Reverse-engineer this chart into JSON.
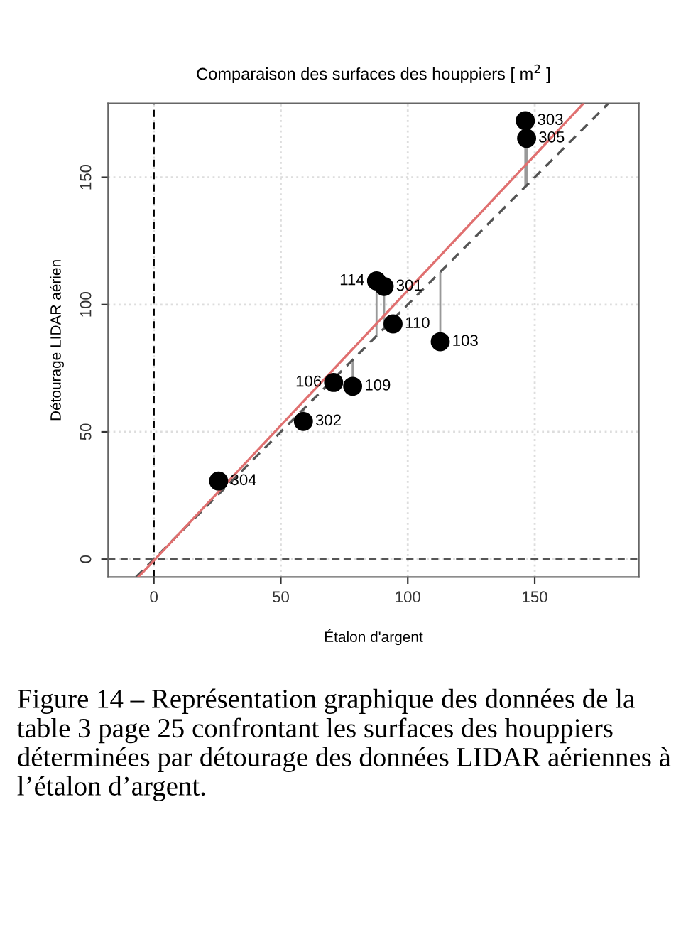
{
  "chart_data": {
    "type": "scatter",
    "title": "Comparaison des surfaces des houppiers [ m$^{2}$ ]",
    "xlabel": "Étalon d'argent",
    "ylabel": "Détourage LIDAR aérien",
    "xlim": [
      -18,
      191
    ],
    "ylim": [
      -7,
      179
    ],
    "xticks": [
      0,
      50,
      100,
      150
    ],
    "yticks": [
      0,
      50,
      100,
      150
    ],
    "grid": true,
    "legend": false,
    "series": [
      {
        "color": "#000000",
        "marker": "circle",
        "x": [
          146.3,
          146.8,
          87.7,
          90.7,
          94.2,
          112.8,
          70.8,
          78.3,
          58.9,
          25.5
        ],
        "values": [
          172.2,
          165.3,
          109.3,
          107.1,
          92.4,
          85.4,
          69.4,
          67.9,
          54.1,
          30.7
        ],
        "errors": [
          [
            146.3,
            172.2
          ],
          [
            146.8,
            165.3
          ],
          [
            87.7,
            109.3
          ],
          [
            90.7,
            107.1
          ],
          null,
          [
            85.4,
            112.8
          ],
          null,
          [
            67.9,
            78.3
          ],
          [
            54.1,
            58.9
          ],
          [
            25.5,
            30.7
          ]
        ]
      },
      {
        "type": "line",
        "color": "#555555",
        "line_style": "dashed",
        "x": [
          -7,
          179
        ],
        "values": [
          -7,
          179
        ]
      },
      {
        "type": "line",
        "color": "#e07070",
        "line_style": "solid",
        "x": [
          -6.1,
          169.1
        ],
        "values": [
          -7,
          178.9
        ]
      }
    ],
    "ref_lines": [
      {
        "axis": "x",
        "value": 0,
        "color": "#000000",
        "line_style": "dashed"
      },
      {
        "axis": "y",
        "value": 0,
        "color": "#555555",
        "line_style": "dashed"
      }
    ],
    "annotations": [
      {
        "text": "303",
        "x": 146.3,
        "y": 172.2
      },
      {
        "text": "305",
        "x": 146.8,
        "y": 165.3
      },
      {
        "text": "114",
        "x": 87.7,
        "y": 109.3
      },
      {
        "text": "301",
        "x": 90.7,
        "y": 107.1
      },
      {
        "text": "110",
        "x": 94.2,
        "y": 92.4
      },
      {
        "text": "103",
        "x": 112.8,
        "y": 85.4
      },
      {
        "text": "106",
        "x": 70.8,
        "y": 69.4
      },
      {
        "text": "109",
        "x": 78.3,
        "y": 67.9
      },
      {
        "text": "302",
        "x": 58.9,
        "y": 54.1
      },
      {
        "text": "304",
        "x": 25.5,
        "y": 30.7
      },
      "Figure 14 – Représentation graphique des données de la table 3 page 25 confrontant les surfaces des houppiers déterminées par détourage des données LIDAR aériennes à l’étalon d’argent."
    ]
  }
}
